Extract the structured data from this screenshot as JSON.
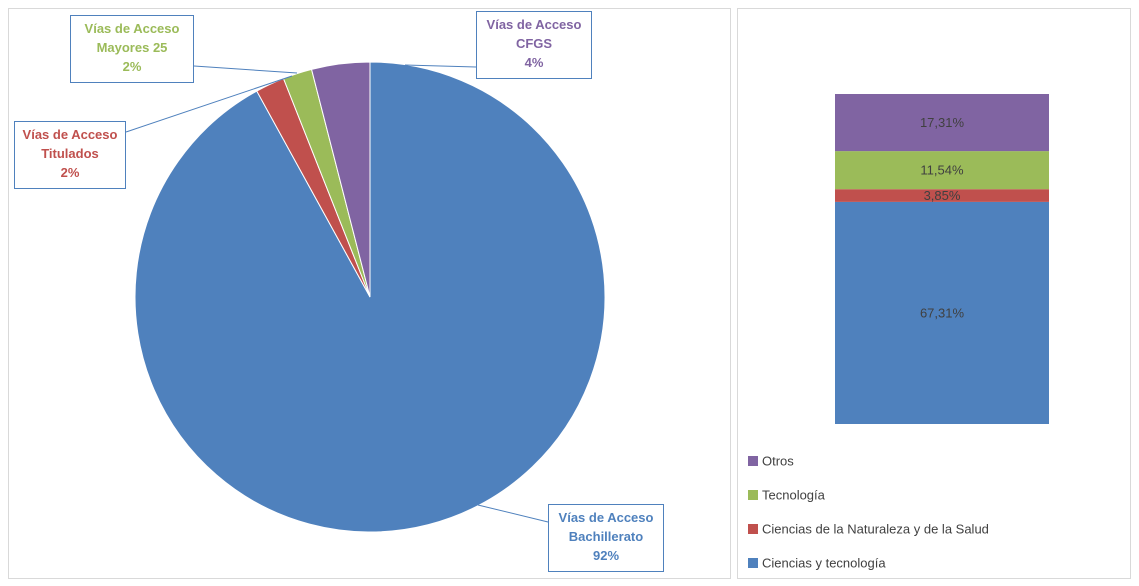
{
  "chart_data": [
    {
      "type": "pie",
      "categories": [
        "Vías de Acceso Bachillerato",
        "Vías de Acceso Titulados",
        "Vías de Acceso Mayores 25",
        "Vías de Acceso CFGS"
      ],
      "values": [
        92,
        2,
        2,
        4
      ],
      "value_labels": [
        "92%",
        "2%",
        "2%",
        "4%"
      ],
      "colors": [
        "#4f81bd",
        "#c0504d",
        "#9bbb59",
        "#8064a2"
      ]
    },
    {
      "type": "stacked-bar",
      "series": [
        {
          "name": "Ciencias y tecnología",
          "color": "#4f81bd",
          "values": [
            67.31
          ],
          "value_labels": [
            "67,31%"
          ]
        },
        {
          "name": "Ciencias de la Naturaleza y de la Salud",
          "color": "#c0504d",
          "values": [
            3.85
          ],
          "value_labels": [
            "3,85%"
          ]
        },
        {
          "name": "Tecnología",
          "color": "#9bbb59",
          "values": [
            11.54
          ],
          "value_labels": [
            "11,54%"
          ]
        },
        {
          "name": "Otros",
          "color": "#8064a2",
          "values": [
            17.31
          ],
          "value_labels": [
            "17,31%"
          ]
        }
      ]
    }
  ]
}
